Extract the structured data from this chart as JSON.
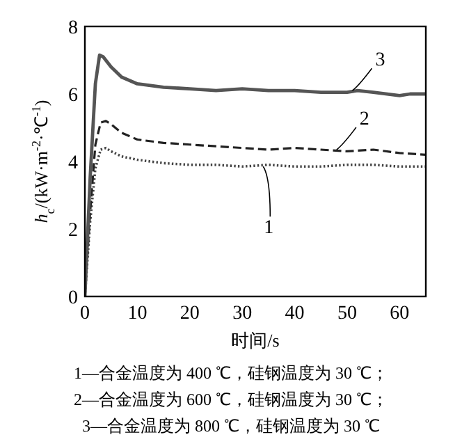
{
  "chart_data": {
    "type": "line",
    "xlabel": "时间/s",
    "ylabel": "*h*$_{c}$/(kW·m$^{-2}$·℃$^{-1}$)",
    "xlim": [
      0,
      65
    ],
    "xticks": [
      0,
      10,
      20,
      30,
      40,
      50,
      60
    ],
    "ylim": [
      0,
      8
    ],
    "yticks": [
      0,
      2,
      4,
      6,
      8
    ],
    "grid": false,
    "marker": "none",
    "series": [
      {
        "color": "#444444",
        "line_style": "dotted",
        "x": [
          0,
          1,
          2,
          3,
          4,
          5,
          7,
          10,
          15,
          20,
          25,
          30,
          35,
          40,
          45,
          50,
          55,
          60,
          65
        ],
        "values": [
          0,
          2.2,
          3.8,
          4.35,
          4.4,
          4.3,
          4.15,
          4.05,
          3.95,
          3.9,
          3.9,
          3.85,
          3.9,
          3.85,
          3.85,
          3.9,
          3.9,
          3.85,
          3.85
        ]
      },
      {
        "color": "#222222",
        "line_style": "dashed",
        "x": [
          0,
          1,
          2,
          3,
          4,
          5,
          7,
          10,
          15,
          20,
          25,
          30,
          35,
          40,
          45,
          50,
          55,
          60,
          65
        ],
        "values": [
          0,
          2.5,
          4.5,
          5.15,
          5.2,
          5.1,
          4.85,
          4.65,
          4.55,
          4.5,
          4.45,
          4.4,
          4.35,
          4.4,
          4.35,
          4.3,
          4.35,
          4.25,
          4.2
        ]
      },
      {
        "color": "#555555",
        "line_style": "solid",
        "x": [
          0,
          1,
          2,
          2.8,
          3.5,
          5,
          7,
          10,
          15,
          20,
          25,
          30,
          35,
          40,
          45,
          50,
          52,
          55,
          60,
          62,
          65
        ],
        "values": [
          0,
          3.5,
          6.3,
          7.15,
          7.1,
          6.8,
          6.5,
          6.3,
          6.2,
          6.15,
          6.1,
          6.15,
          6.1,
          6.1,
          6.05,
          6.05,
          6.1,
          6.05,
          5.95,
          6.0,
          6.0
        ]
      }
    ],
    "annotations": [
      {
        "text": "1",
        "x": 34,
        "y": 3.85
      },
      {
        "text": "2",
        "x": 48,
        "y": 4.35
      },
      {
        "text": "3",
        "x": 51,
        "y": 6.1
      },
      "1—合金温度为 400 ℃，硅钢温度为 30 ℃；",
      "2—合金温度为 600 ℃，硅钢温度为 30 ℃；",
      "3—合金温度为 800 ℃，硅钢温度为 30 ℃"
    ]
  }
}
